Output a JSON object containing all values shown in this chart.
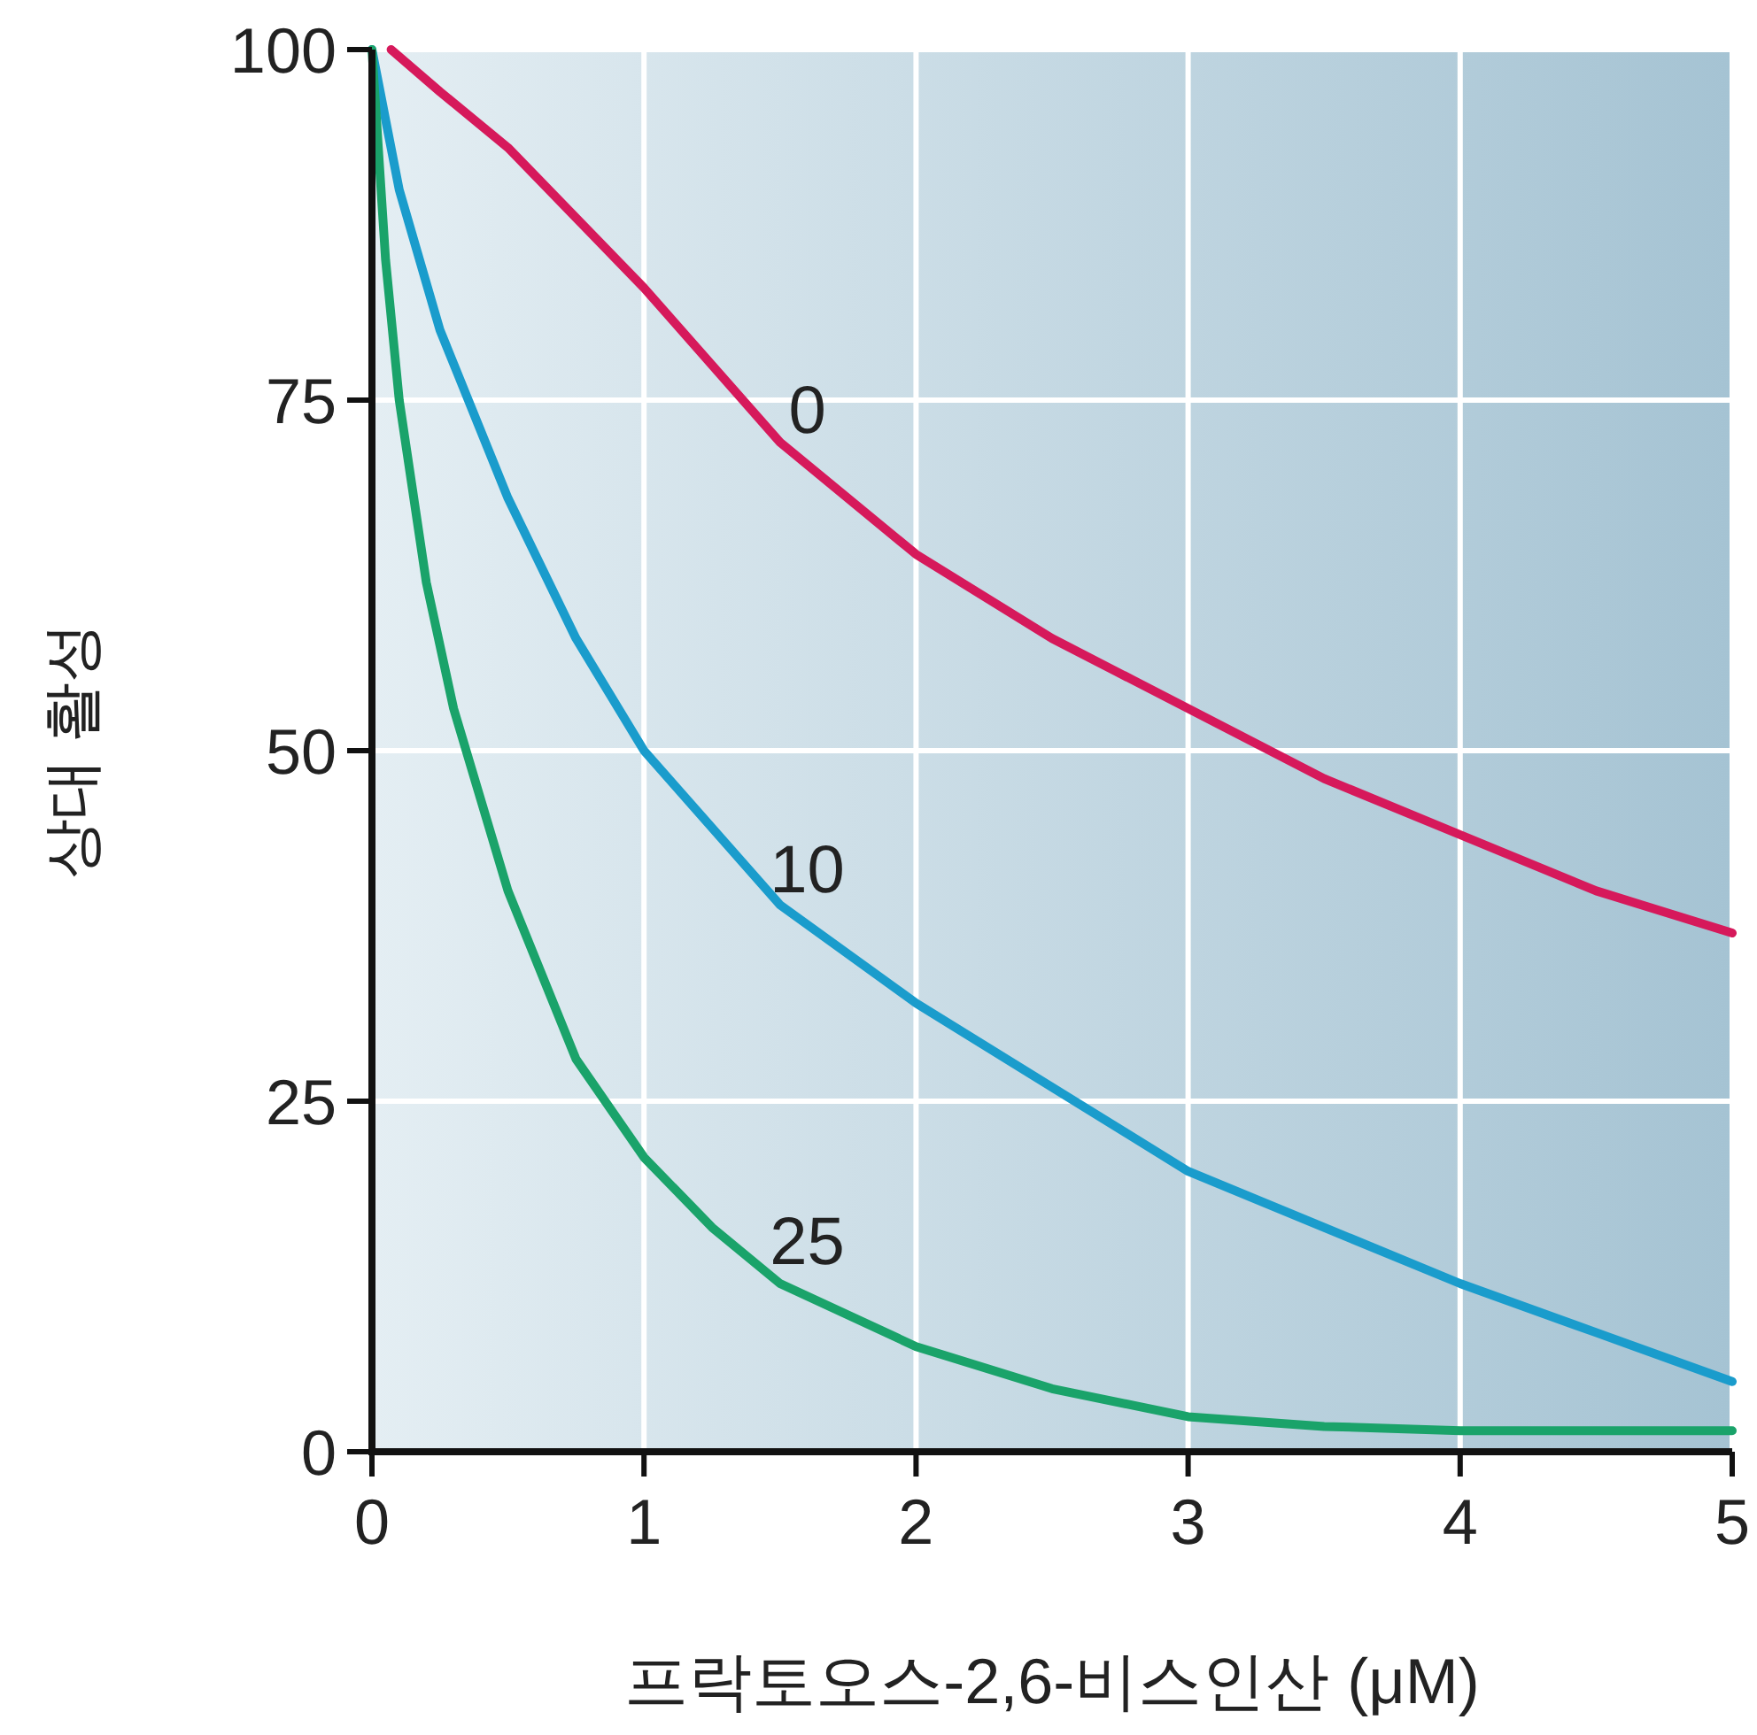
{
  "chart_data": {
    "type": "line",
    "xlabel": "프락토오스-2,6-비스인산 (μM)",
    "ylabel": "상대 활성",
    "xlim": [
      0,
      5
    ],
    "ylim": [
      0,
      100
    ],
    "xticks": [
      0,
      1,
      2,
      3,
      4,
      5
    ],
    "yticks": [
      0,
      25,
      50,
      75,
      100
    ],
    "grid": true,
    "marker": "none",
    "line_style": "solid",
    "series": [
      {
        "name": "0",
        "color": "#d6195b",
        "x": [
          0.07,
          0.25,
          0.5,
          1,
          1.5,
          2,
          2.5,
          3,
          3.5,
          4,
          4.5,
          5
        ],
        "values": [
          100,
          97,
          93,
          83,
          72,
          64,
          58,
          53,
          48,
          44,
          40,
          37
        ]
      },
      {
        "name": "10",
        "color": "#1a9ccc",
        "x": [
          0,
          0.1,
          0.25,
          0.5,
          0.75,
          1,
          1.5,
          2,
          2.5,
          3,
          3.5,
          4,
          4.5,
          5
        ],
        "values": [
          100,
          90,
          80,
          68,
          58,
          50,
          39,
          32,
          26,
          20,
          16,
          12,
          8.5,
          5
        ]
      },
      {
        "name": "25",
        "color": "#1aa36a",
        "x": [
          0,
          0.05,
          0.1,
          0.2,
          0.3,
          0.5,
          0.75,
          1,
          1.25,
          1.5,
          2,
          2.5,
          3,
          3.5,
          4,
          4.5,
          5
        ],
        "values": [
          100,
          85,
          75,
          62,
          53,
          40,
          28,
          21,
          16,
          12,
          7.5,
          4.5,
          2.5,
          1.8,
          1.5,
          1.5,
          1.5
        ]
      }
    ]
  }
}
